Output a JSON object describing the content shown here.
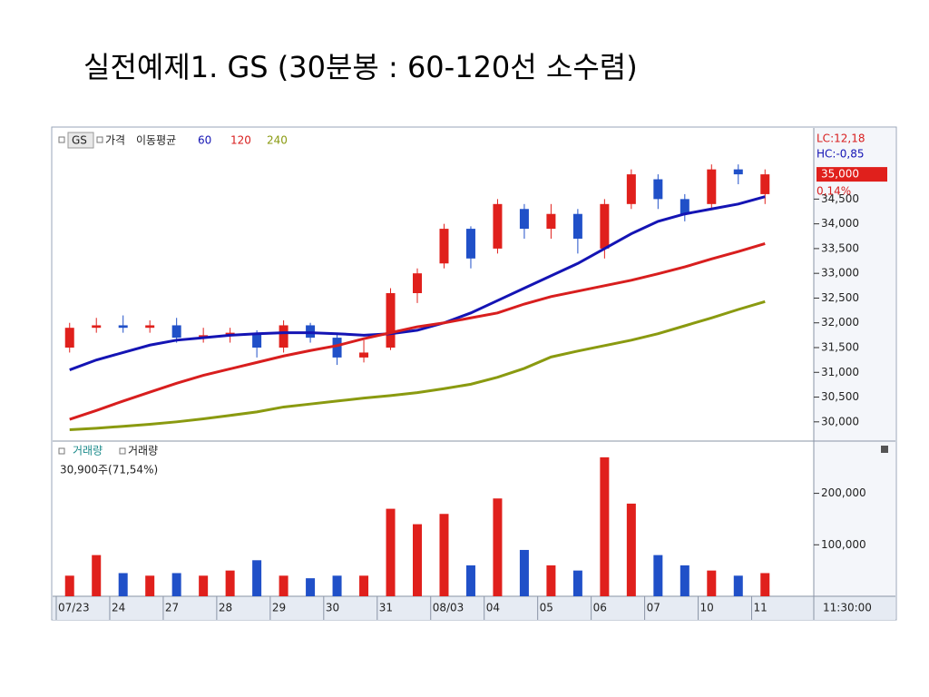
{
  "title": "실전예제1. GS (30분봉 : 60-120선 소수렴)",
  "chart_data": [
    {
      "type": "candlestick",
      "symbol": "GS",
      "ma_label": "이동평균",
      "up_color": "#e0201c",
      "down_color": "#2050c8",
      "series": [
        {
          "name": "가격",
          "open": [
            31500,
            31900,
            31950,
            31900,
            31950,
            31700,
            31750,
            31800,
            31500,
            31950,
            31700,
            31300,
            31500,
            32600,
            33200,
            33900,
            33500,
            34300,
            33900,
            34200,
            33500,
            34400,
            34900,
            34500,
            34400,
            35100,
            34600
          ],
          "high": [
            32000,
            32100,
            32150,
            32050,
            32100,
            31900,
            31900,
            31850,
            32050,
            32000,
            31800,
            31650,
            32700,
            33100,
            34000,
            33950,
            34500,
            34400,
            34400,
            34300,
            34500,
            35100,
            35000,
            34600,
            35200,
            35200,
            35100
          ],
          "low": [
            31400,
            31800,
            31800,
            31800,
            31600,
            31600,
            31600,
            31300,
            31400,
            31600,
            31150,
            31200,
            31450,
            32400,
            33100,
            33100,
            33400,
            33700,
            33700,
            33400,
            33300,
            34300,
            34300,
            34050,
            34300,
            34800,
            34400
          ],
          "close": [
            31900,
            31950,
            31900,
            31950,
            31700,
            31750,
            31800,
            31500,
            31950,
            31700,
            31300,
            31400,
            32600,
            33000,
            33900,
            33300,
            34400,
            33900,
            34200,
            33700,
            34400,
            35000,
            34500,
            34200,
            35100,
            35000,
            35000
          ]
        },
        {
          "name": "60",
          "type": "line",
          "color": "#1414b4",
          "values": [
            31050,
            31250,
            31400,
            31550,
            31650,
            31700,
            31750,
            31780,
            31800,
            31800,
            31780,
            31750,
            31780,
            31850,
            32000,
            32200,
            32450,
            32700,
            32950,
            33200,
            33500,
            33800,
            34050,
            34200,
            34300,
            34400,
            34550
          ]
        },
        {
          "name": "120",
          "type": "line",
          "color": "#d81e1e",
          "values": [
            30050,
            30230,
            30420,
            30600,
            30780,
            30940,
            31070,
            31200,
            31330,
            31440,
            31540,
            31680,
            31800,
            31920,
            32000,
            32100,
            32200,
            32380,
            32530,
            32640,
            32750,
            32860,
            32990,
            33130,
            33290,
            33440,
            33600
          ]
        },
        {
          "name": "240",
          "type": "line",
          "color": "#8a9a10",
          "values": [
            29840,
            29870,
            29910,
            29950,
            30000,
            30060,
            30130,
            30200,
            30300,
            30360,
            30420,
            30480,
            30530,
            30590,
            30670,
            30760,
            30900,
            31080,
            31310,
            31430,
            31540,
            31650,
            31780,
            31940,
            32100,
            32270,
            32430
          ]
        }
      ],
      "ylim": [
        29630,
        35900
      ],
      "yticks": [
        {
          "value": 30000,
          "label": "30,000"
        },
        {
          "value": 30500,
          "label": "30,500"
        },
        {
          "value": 31000,
          "label": "31,000"
        },
        {
          "value": 31500,
          "label": "31,500"
        },
        {
          "value": 32000,
          "label": "32,000"
        },
        {
          "value": 32500,
          "label": "32,500"
        },
        {
          "value": 33000,
          "label": "33,000"
        },
        {
          "value": 33500,
          "label": "33,500"
        },
        {
          "value": 34000,
          "label": "34,000"
        },
        {
          "value": 34500,
          "label": "34,500"
        }
      ],
      "annotations": [
        "LC:12,18",
        "HC:-0,85",
        "0,14%"
      ],
      "last_price": {
        "value": 35000,
        "label": "35,000"
      }
    },
    {
      "type": "bar",
      "legend": [
        "거래량",
        "거래량"
      ],
      "note": "30,900주(71,54%)",
      "categories": [
        "07/23",
        null,
        "24",
        null,
        "27",
        null,
        "28",
        null,
        "29",
        null,
        "30",
        null,
        "31",
        null,
        "08/03",
        null,
        "04",
        null,
        "05",
        null,
        "06",
        null,
        "07",
        null,
        "10",
        null,
        "11"
      ],
      "values": [
        40000,
        80000,
        45000,
        40000,
        45000,
        40000,
        50000,
        70000,
        40000,
        35000,
        40000,
        40000,
        170000,
        140000,
        160000,
        60000,
        190000,
        90000,
        60000,
        50000,
        270000,
        180000,
        80000,
        60000,
        50000,
        40000,
        45000
      ],
      "ylim": [
        0,
        298000
      ],
      "yticks": [
        {
          "value": 100000,
          "label": "100,000"
        },
        {
          "value": 200000,
          "label": "200,000"
        }
      ],
      "time_label": "11:30:00"
    }
  ]
}
